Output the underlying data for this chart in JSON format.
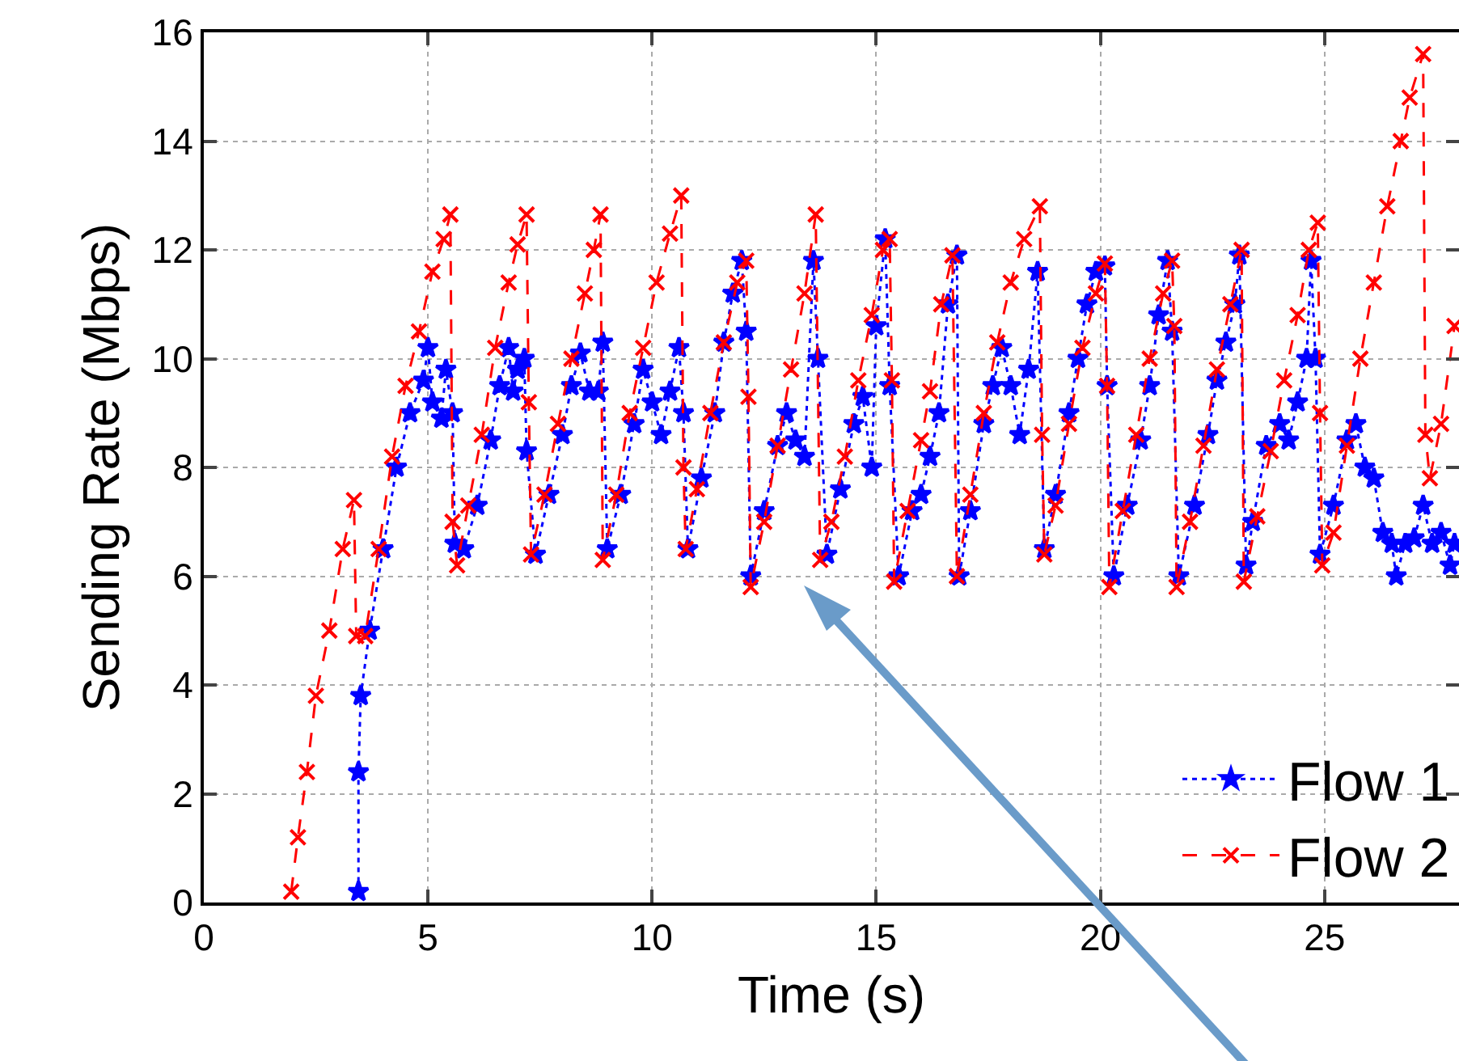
{
  "chart_data": {
    "type": "line",
    "xlabel": "Time (s)",
    "ylabel": "Sending Rate (Mbps)",
    "xlim": [
      0,
      28
    ],
    "xticks": [
      0,
      5,
      10,
      15,
      20,
      25
    ],
    "ylim": [
      0,
      16
    ],
    "yticks": [
      0,
      2,
      4,
      6,
      8,
      10,
      12,
      14,
      16
    ],
    "grid": true,
    "legend": "bottom right",
    "series": [
      {
        "name": "Flow 1",
        "color": "#0000ff",
        "marker": "star",
        "line_style": "dotted",
        "x": [
          3.45,
          3.45,
          3.5,
          3.7,
          4.0,
          4.3,
          4.6,
          4.9,
          5.0,
          5.1,
          5.3,
          5.4,
          5.55,
          5.6,
          5.8,
          6.1,
          6.4,
          6.6,
          6.8,
          6.9,
          7.0,
          7.15,
          7.2,
          7.4,
          7.7,
          8.0,
          8.2,
          8.4,
          8.6,
          8.8,
          8.9,
          9.0,
          9.3,
          9.6,
          9.8,
          10.0,
          10.2,
          10.4,
          10.6,
          10.7,
          10.8,
          11.1,
          11.4,
          11.6,
          11.8,
          12.0,
          12.1,
          12.2,
          12.5,
          12.8,
          13.0,
          13.2,
          13.4,
          13.6,
          13.7,
          13.9,
          14.2,
          14.5,
          14.7,
          14.9,
          15.0,
          15.2,
          15.3,
          15.5,
          15.8,
          16.0,
          16.2,
          16.4,
          16.6,
          16.8,
          16.85,
          17.1,
          17.4,
          17.6,
          17.8,
          18.0,
          18.2,
          18.4,
          18.6,
          18.75,
          19.0,
          19.3,
          19.5,
          19.7,
          19.9,
          20.1,
          20.15,
          20.3,
          20.6,
          20.9,
          21.1,
          21.3,
          21.5,
          21.6,
          21.75,
          22.1,
          22.4,
          22.6,
          22.8,
          23.0,
          23.1,
          23.25,
          23.4,
          23.7,
          24.0,
          24.2,
          24.4,
          24.6,
          24.7,
          24.8,
          24.9,
          25.2,
          25.5,
          25.7,
          25.9,
          26.1,
          26.3,
          26.5,
          26.6,
          26.8,
          27.0,
          27.2,
          27.4,
          27.6,
          27.8,
          27.9
        ],
        "values": [
          0.2,
          2.4,
          3.8,
          5.0,
          6.5,
          8.0,
          9.0,
          9.6,
          10.2,
          9.2,
          8.9,
          9.8,
          9.0,
          6.6,
          6.5,
          7.3,
          8.5,
          9.5,
          10.2,
          9.4,
          9.8,
          10.0,
          8.3,
          6.4,
          7.5,
          8.6,
          9.5,
          10.1,
          9.4,
          9.4,
          10.3,
          6.5,
          7.5,
          8.8,
          9.8,
          9.2,
          8.6,
          9.4,
          10.2,
          9.0,
          6.5,
          7.8,
          9.0,
          10.3,
          11.2,
          11.8,
          10.5,
          6.0,
          7.2,
          8.4,
          9.0,
          8.5,
          8.2,
          11.8,
          10.0,
          6.4,
          7.6,
          8.8,
          9.3,
          8.0,
          10.6,
          12.2,
          9.5,
          6.0,
          7.2,
          7.5,
          8.2,
          9.0,
          11.0,
          11.9,
          6.0,
          7.2,
          8.8,
          9.5,
          10.2,
          9.5,
          8.6,
          9.8,
          11.6,
          6.5,
          7.5,
          9.0,
          10.0,
          11.0,
          11.6,
          11.7,
          9.5,
          6.0,
          7.3,
          8.5,
          9.5,
          10.8,
          11.8,
          10.5,
          6.0,
          7.3,
          8.6,
          9.6,
          10.3,
          11.0,
          11.9,
          6.2,
          7.0,
          8.4,
          8.8,
          8.5,
          9.2,
          10.0,
          11.8,
          10.0,
          6.4,
          7.3,
          8.5,
          8.8,
          8.0,
          7.8,
          6.8,
          6.6,
          6.0,
          6.6,
          6.7,
          7.3,
          6.6,
          6.8,
          6.2,
          6.6
        ]
      },
      {
        "name": "Flow 2",
        "color": "#ff0000",
        "marker": "cross",
        "line_style": "dashed",
        "x": [
          1.95,
          2.1,
          2.3,
          2.5,
          2.8,
          3.1,
          3.35,
          3.4,
          3.6,
          3.9,
          4.2,
          4.5,
          4.8,
          5.1,
          5.35,
          5.5,
          5.55,
          5.65,
          5.9,
          6.2,
          6.5,
          6.8,
          7.0,
          7.2,
          7.25,
          7.3,
          7.6,
          7.9,
          8.2,
          8.5,
          8.7,
          8.85,
          8.9,
          9.2,
          9.5,
          9.8,
          10.1,
          10.4,
          10.65,
          10.7,
          10.75,
          11.0,
          11.3,
          11.6,
          11.9,
          12.1,
          12.15,
          12.2,
          12.5,
          12.8,
          13.1,
          13.4,
          13.65,
          13.75,
          14.0,
          14.3,
          14.6,
          14.9,
          15.15,
          15.3,
          15.35,
          15.4,
          15.7,
          16.0,
          16.2,
          16.45,
          16.7,
          16.8,
          17.1,
          17.4,
          17.7,
          18.0,
          18.3,
          18.65,
          18.7,
          18.75,
          19.0,
          19.3,
          19.6,
          19.9,
          20.1,
          20.15,
          20.2,
          20.5,
          20.8,
          21.1,
          21.4,
          21.6,
          21.65,
          21.7,
          22.0,
          22.3,
          22.6,
          22.9,
          23.15,
          23.2,
          23.5,
          23.8,
          24.1,
          24.4,
          24.65,
          24.85,
          24.9,
          24.95,
          25.2,
          25.5,
          25.8,
          26.1,
          26.4,
          26.7,
          26.9,
          27.2,
          27.25,
          27.35,
          27.6,
          27.9
        ],
        "values": [
          0.2,
          1.2,
          2.4,
          3.8,
          5.0,
          6.5,
          7.4,
          4.9,
          4.9,
          6.5,
          8.2,
          9.5,
          10.5,
          11.6,
          12.2,
          12.65,
          7.0,
          6.2,
          7.3,
          8.6,
          10.2,
          11.4,
          12.1,
          12.65,
          9.2,
          6.4,
          7.5,
          8.8,
          10.0,
          11.2,
          12.0,
          12.65,
          6.3,
          7.5,
          9.0,
          10.2,
          11.4,
          12.3,
          13.0,
          8.0,
          6.5,
          7.6,
          9.0,
          10.3,
          11.4,
          11.8,
          9.3,
          5.8,
          7.0,
          8.4,
          9.8,
          11.2,
          12.65,
          6.3,
          7.0,
          8.2,
          9.6,
          10.8,
          12.0,
          12.2,
          9.6,
          5.9,
          7.2,
          8.5,
          9.4,
          11.0,
          11.9,
          6.0,
          7.5,
          9.0,
          10.3,
          11.4,
          12.2,
          12.8,
          8.6,
          6.4,
          7.3,
          8.8,
          10.2,
          11.2,
          11.75,
          9.5,
          5.8,
          7.2,
          8.6,
          10.0,
          11.2,
          11.8,
          10.6,
          5.8,
          7.0,
          8.4,
          9.8,
          11.0,
          12.0,
          5.9,
          7.1,
          8.3,
          9.6,
          10.8,
          12.0,
          12.5,
          9.0,
          6.2,
          6.8,
          8.4,
          10.0,
          11.4,
          12.8,
          14.0,
          14.8,
          15.6,
          8.6,
          7.8,
          8.8,
          10.6
        ]
      }
    ]
  }
}
